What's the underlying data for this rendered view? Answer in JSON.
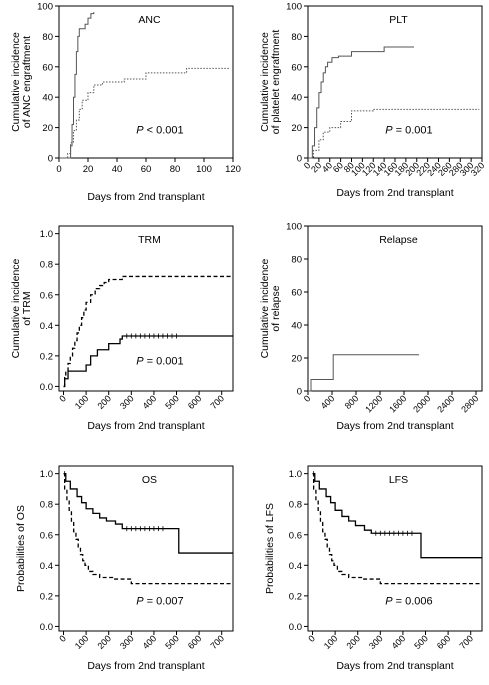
{
  "chart_data": [
    {
      "id": "anc",
      "type": "line",
      "title": "ANC",
      "xlabel": "Days from 2nd transplant",
      "ylabel": [
        "Cumulative incidence",
        "of ANC engraftment"
      ],
      "xticks": [
        0,
        20,
        40,
        60,
        80,
        100,
        120
      ],
      "yticks": [
        0,
        20,
        40,
        60,
        80,
        100
      ],
      "xlim": [
        0,
        120
      ],
      "ylim": [
        0,
        100
      ],
      "annotation": {
        "italic": "P",
        "rest": " < 0.001"
      },
      "series": [
        {
          "style": "solid",
          "censor": false,
          "step": true,
          "x": [
            0,
            8,
            9,
            10,
            11,
            12,
            13,
            14,
            16,
            18,
            20,
            22,
            24
          ],
          "y": [
            0,
            8,
            22,
            40,
            55,
            70,
            80,
            85,
            85,
            88,
            92,
            95,
            96
          ]
        },
        {
          "style": "dotted",
          "censor": false,
          "step": true,
          "x": [
            0,
            6,
            8,
            10,
            12,
            14,
            16,
            20,
            24,
            30,
            45,
            60,
            88,
            100,
            118
          ],
          "y": [
            0,
            3,
            10,
            18,
            25,
            32,
            38,
            43,
            48,
            50,
            52,
            56,
            59,
            59,
            59
          ]
        }
      ]
    },
    {
      "id": "plt",
      "type": "line",
      "title": "PLT",
      "xlabel": "Days from 2nd transplant",
      "ylabel": [
        "Cumulative incidence",
        "of platelet engraftment"
      ],
      "xticks": [
        0,
        20,
        40,
        60,
        80,
        100,
        120,
        140,
        160,
        180,
        200,
        220,
        240,
        260,
        280,
        300,
        320
      ],
      "yticks": [
        0,
        20,
        40,
        60,
        80,
        100
      ],
      "xlim": [
        0,
        320
      ],
      "ylim": [
        0,
        100
      ],
      "annotation": {
        "italic": "P",
        "rest": " = 0.001"
      },
      "series": [
        {
          "style": "solid",
          "censor": false,
          "step": true,
          "x": [
            0,
            8,
            12,
            16,
            20,
            24,
            28,
            32,
            36,
            44,
            56,
            80,
            140,
            195
          ],
          "y": [
            0,
            8,
            20,
            33,
            43,
            50,
            56,
            60,
            63,
            66,
            67,
            70,
            73,
            73
          ]
        },
        {
          "style": "dotted",
          "censor": false,
          "step": true,
          "x": [
            0,
            10,
            20,
            28,
            40,
            60,
            80,
            120,
            200,
            315
          ],
          "y": [
            0,
            5,
            12,
            17,
            20,
            24,
            31,
            32,
            32,
            32
          ]
        }
      ]
    },
    {
      "id": "trm",
      "type": "line",
      "title": "TRM",
      "xlabel": "Days from 2nd transplant",
      "ylabel": [
        "Cumulative incidence",
        "of TRM"
      ],
      "xticks": [
        0,
        100,
        200,
        300,
        400,
        500,
        600,
        700
      ],
      "yticks": [
        0.0,
        0.2,
        0.4,
        0.6,
        0.8,
        1.0
      ],
      "xlim": [
        -20,
        750
      ],
      "ylim": [
        -0.03,
        1.05
      ],
      "annotation": {
        "italic": "P",
        "rest": " = 0.001"
      },
      "series": [
        {
          "style": "solid",
          "censor": true,
          "step": true,
          "x": [
            0,
            5,
            20,
            100,
            120,
            150,
            200,
            250,
            260,
            750
          ],
          "y": [
            0.0,
            0.05,
            0.1,
            0.14,
            0.2,
            0.24,
            0.28,
            0.31,
            0.33,
            0.33
          ],
          "censor_x": [
            280,
            300,
            320,
            340,
            360,
            380,
            400,
            420,
            440,
            460,
            480,
            500
          ]
        },
        {
          "style": "dashed",
          "censor": false,
          "step": true,
          "x": [
            0,
            5,
            10,
            20,
            30,
            40,
            50,
            60,
            70,
            80,
            90,
            100,
            120,
            140,
            160,
            180,
            200,
            260,
            750
          ],
          "y": [
            0.0,
            0.07,
            0.1,
            0.15,
            0.2,
            0.25,
            0.3,
            0.35,
            0.4,
            0.45,
            0.5,
            0.55,
            0.6,
            0.64,
            0.66,
            0.68,
            0.7,
            0.72,
            0.72
          ]
        }
      ]
    },
    {
      "id": "relapse",
      "type": "line",
      "title": "Relapse",
      "xlabel": "Days from 2nd transplant",
      "ylabel": [
        "Cumulative incidence",
        "of relapse"
      ],
      "xticks": [
        0,
        400,
        800,
        1200,
        1600,
        2000,
        2400,
        2800
      ],
      "yticks": [
        0,
        20,
        40,
        60,
        80,
        100
      ],
      "xlim": [
        0,
        2900
      ],
      "ylim": [
        0,
        100
      ],
      "annotation": null,
      "series": [
        {
          "style": "solid",
          "censor": false,
          "step": true,
          "x": [
            0,
            50,
            420,
            1850
          ],
          "y": [
            0,
            7,
            22,
            22
          ]
        }
      ]
    },
    {
      "id": "os",
      "type": "line",
      "title": "OS",
      "xlabel": "Days from 2nd transplant",
      "ylabel": [
        "Probabilities of OS"
      ],
      "xticks": [
        0,
        100,
        200,
        300,
        400,
        500,
        600,
        700
      ],
      "yticks": [
        0.0,
        0.2,
        0.4,
        0.6,
        0.8,
        1.0
      ],
      "xlim": [
        -20,
        750
      ],
      "ylim": [
        -0.03,
        1.05
      ],
      "annotation": {
        "italic": "P",
        "rest": " = 0.007"
      },
      "series": [
        {
          "style": "solid",
          "censor": true,
          "step": true,
          "x": [
            0,
            10,
            30,
            60,
            80,
            100,
            130,
            160,
            190,
            230,
            260,
            510,
            750
          ],
          "y": [
            1.0,
            0.95,
            0.9,
            0.85,
            0.81,
            0.77,
            0.74,
            0.71,
            0.69,
            0.67,
            0.64,
            0.48,
            0.48
          ],
          "censor_x": [
            5,
            280,
            300,
            320,
            340,
            360,
            380,
            400,
            420,
            440
          ]
        },
        {
          "style": "dashed",
          "censor": false,
          "step": true,
          "x": [
            0,
            5,
            15,
            25,
            35,
            45,
            55,
            65,
            75,
            85,
            95,
            110,
            130,
            160,
            220,
            300,
            750
          ],
          "y": [
            1.0,
            0.9,
            0.82,
            0.76,
            0.68,
            0.62,
            0.57,
            0.52,
            0.47,
            0.43,
            0.4,
            0.36,
            0.34,
            0.32,
            0.31,
            0.28,
            0.28
          ]
        }
      ]
    },
    {
      "id": "lfs",
      "type": "line",
      "title": "LFS",
      "xlabel": "Days from 2nd transplant",
      "ylabel": [
        "Probabilities of LFS"
      ],
      "xticks": [
        0,
        100,
        200,
        300,
        400,
        500,
        600,
        700
      ],
      "yticks": [
        0.0,
        0.2,
        0.4,
        0.6,
        0.8,
        1.0
      ],
      "xlim": [
        -20,
        750
      ],
      "ylim": [
        -0.03,
        1.05
      ],
      "annotation": {
        "italic": "P",
        "rest": " = 0.006"
      },
      "series": [
        {
          "style": "solid",
          "censor": true,
          "step": true,
          "x": [
            0,
            10,
            30,
            60,
            80,
            100,
            130,
            160,
            190,
            230,
            260,
            480,
            750
          ],
          "y": [
            1.0,
            0.95,
            0.9,
            0.85,
            0.81,
            0.76,
            0.72,
            0.69,
            0.66,
            0.63,
            0.61,
            0.45,
            0.45
          ],
          "censor_x": [
            5,
            280,
            300,
            320,
            340,
            360,
            380,
            400,
            420,
            440
          ]
        },
        {
          "style": "dashed",
          "censor": false,
          "step": true,
          "x": [
            0,
            5,
            15,
            25,
            35,
            45,
            55,
            65,
            75,
            85,
            95,
            110,
            130,
            160,
            220,
            300,
            750
          ],
          "y": [
            1.0,
            0.9,
            0.82,
            0.76,
            0.68,
            0.62,
            0.57,
            0.52,
            0.47,
            0.43,
            0.4,
            0.36,
            0.34,
            0.32,
            0.31,
            0.28,
            0.28
          ]
        }
      ]
    }
  ]
}
